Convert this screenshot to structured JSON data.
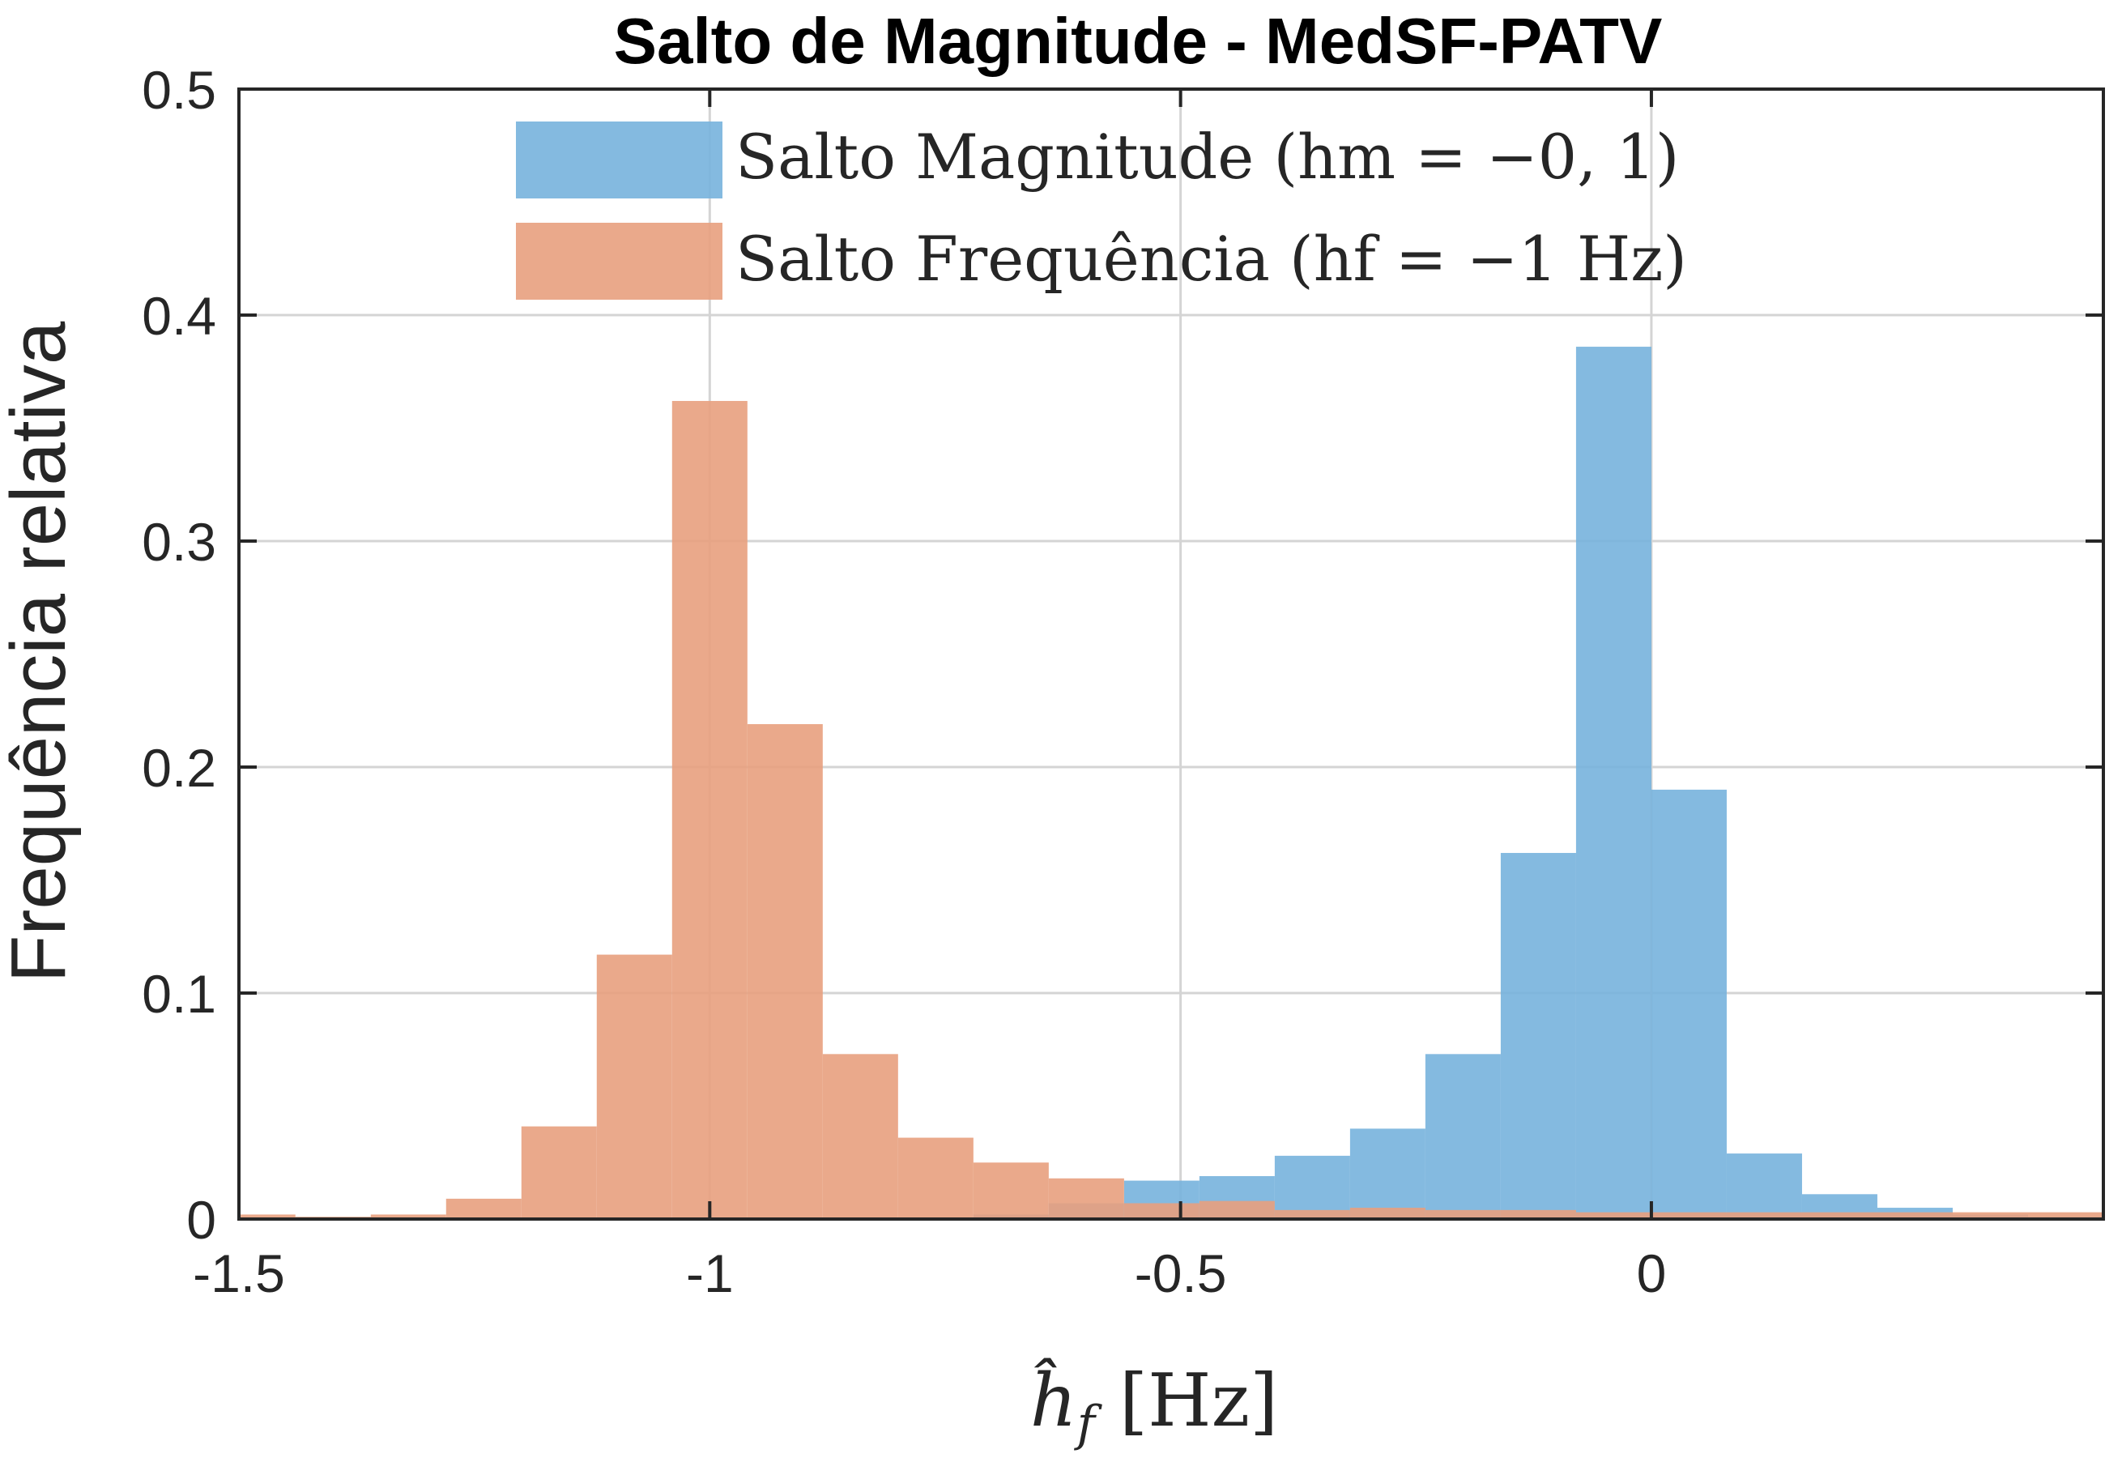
{
  "chart_data": {
    "type": "bar",
    "title": "Salto de Magnitude - MedSF-PATV",
    "xlabel": "ĥ_f [Hz]",
    "xlabel_parts": {
      "symbol": "ĥ",
      "subscript": "f",
      "unit": "[Hz]"
    },
    "ylabel": "Frequência relativa",
    "xlim": [
      -1.5,
      0.48
    ],
    "ylim": [
      0,
      0.5
    ],
    "grid": true,
    "legend_position": "top-center",
    "x_ticks": [
      -1.5,
      -1,
      -0.5,
      0
    ],
    "x_tick_labels": [
      "-1.5",
      "-1",
      "-0.5",
      "0"
    ],
    "y_ticks": [
      0,
      0.1,
      0.2,
      0.3,
      0.4,
      0.5
    ],
    "y_tick_labels": [
      "0",
      "0.1",
      "0.2",
      "0.3",
      "0.4",
      "0.5"
    ],
    "series": [
      {
        "name": "Salto Magnitude (h_m = −0,1)",
        "legend_label": "Salto Magnitude (hm = −0, 1)",
        "color": "#77B3DD",
        "bin_width": 0.08,
        "bins": [
          {
            "x0": -0.72,
            "value": 0.002
          },
          {
            "x0": -0.64,
            "value": 0.007
          },
          {
            "x0": -0.56,
            "value": 0.017
          },
          {
            "x0": -0.48,
            "value": 0.019
          },
          {
            "x0": -0.4,
            "value": 0.028
          },
          {
            "x0": -0.32,
            "value": 0.04
          },
          {
            "x0": -0.24,
            "value": 0.073
          },
          {
            "x0": -0.16,
            "value": 0.162
          },
          {
            "x0": -0.08,
            "value": 0.386
          },
          {
            "x0": 0.0,
            "value": 0.19
          },
          {
            "x0": 0.08,
            "value": 0.029
          },
          {
            "x0": 0.16,
            "value": 0.011
          },
          {
            "x0": 0.24,
            "value": 0.005
          },
          {
            "x0": 0.32,
            "value": 0.002
          },
          {
            "x0": 0.4,
            "value": 0.001
          }
        ]
      },
      {
        "name": "Salto Frequência (h_f = −1 Hz)",
        "legend_label": "Salto Frequência (hf = −1 Hz)",
        "color": "#E8A07E",
        "bin_width": 0.08,
        "bins": [
          {
            "x0": -1.52,
            "value": 0.002
          },
          {
            "x0": -1.44,
            "value": 0.001
          },
          {
            "x0": -1.36,
            "value": 0.002
          },
          {
            "x0": -1.28,
            "value": 0.009
          },
          {
            "x0": -1.2,
            "value": 0.041
          },
          {
            "x0": -1.12,
            "value": 0.117
          },
          {
            "x0": -1.04,
            "value": 0.362
          },
          {
            "x0": -0.96,
            "value": 0.219
          },
          {
            "x0": -0.88,
            "value": 0.073
          },
          {
            "x0": -0.8,
            "value": 0.036
          },
          {
            "x0": -0.72,
            "value": 0.025
          },
          {
            "x0": -0.64,
            "value": 0.018
          },
          {
            "x0": -0.56,
            "value": 0.007
          },
          {
            "x0": -0.48,
            "value": 0.008
          },
          {
            "x0": -0.4,
            "value": 0.004
          },
          {
            "x0": -0.32,
            "value": 0.005
          },
          {
            "x0": -0.24,
            "value": 0.004
          },
          {
            "x0": -0.16,
            "value": 0.004
          },
          {
            "x0": -0.08,
            "value": 0.003
          },
          {
            "x0": 0.0,
            "value": 0.003
          },
          {
            "x0": 0.08,
            "value": 0.003
          },
          {
            "x0": 0.16,
            "value": 0.003
          },
          {
            "x0": 0.24,
            "value": 0.003
          },
          {
            "x0": 0.32,
            "value": 0.003
          },
          {
            "x0": 0.4,
            "value": 0.003
          }
        ]
      }
    ]
  }
}
